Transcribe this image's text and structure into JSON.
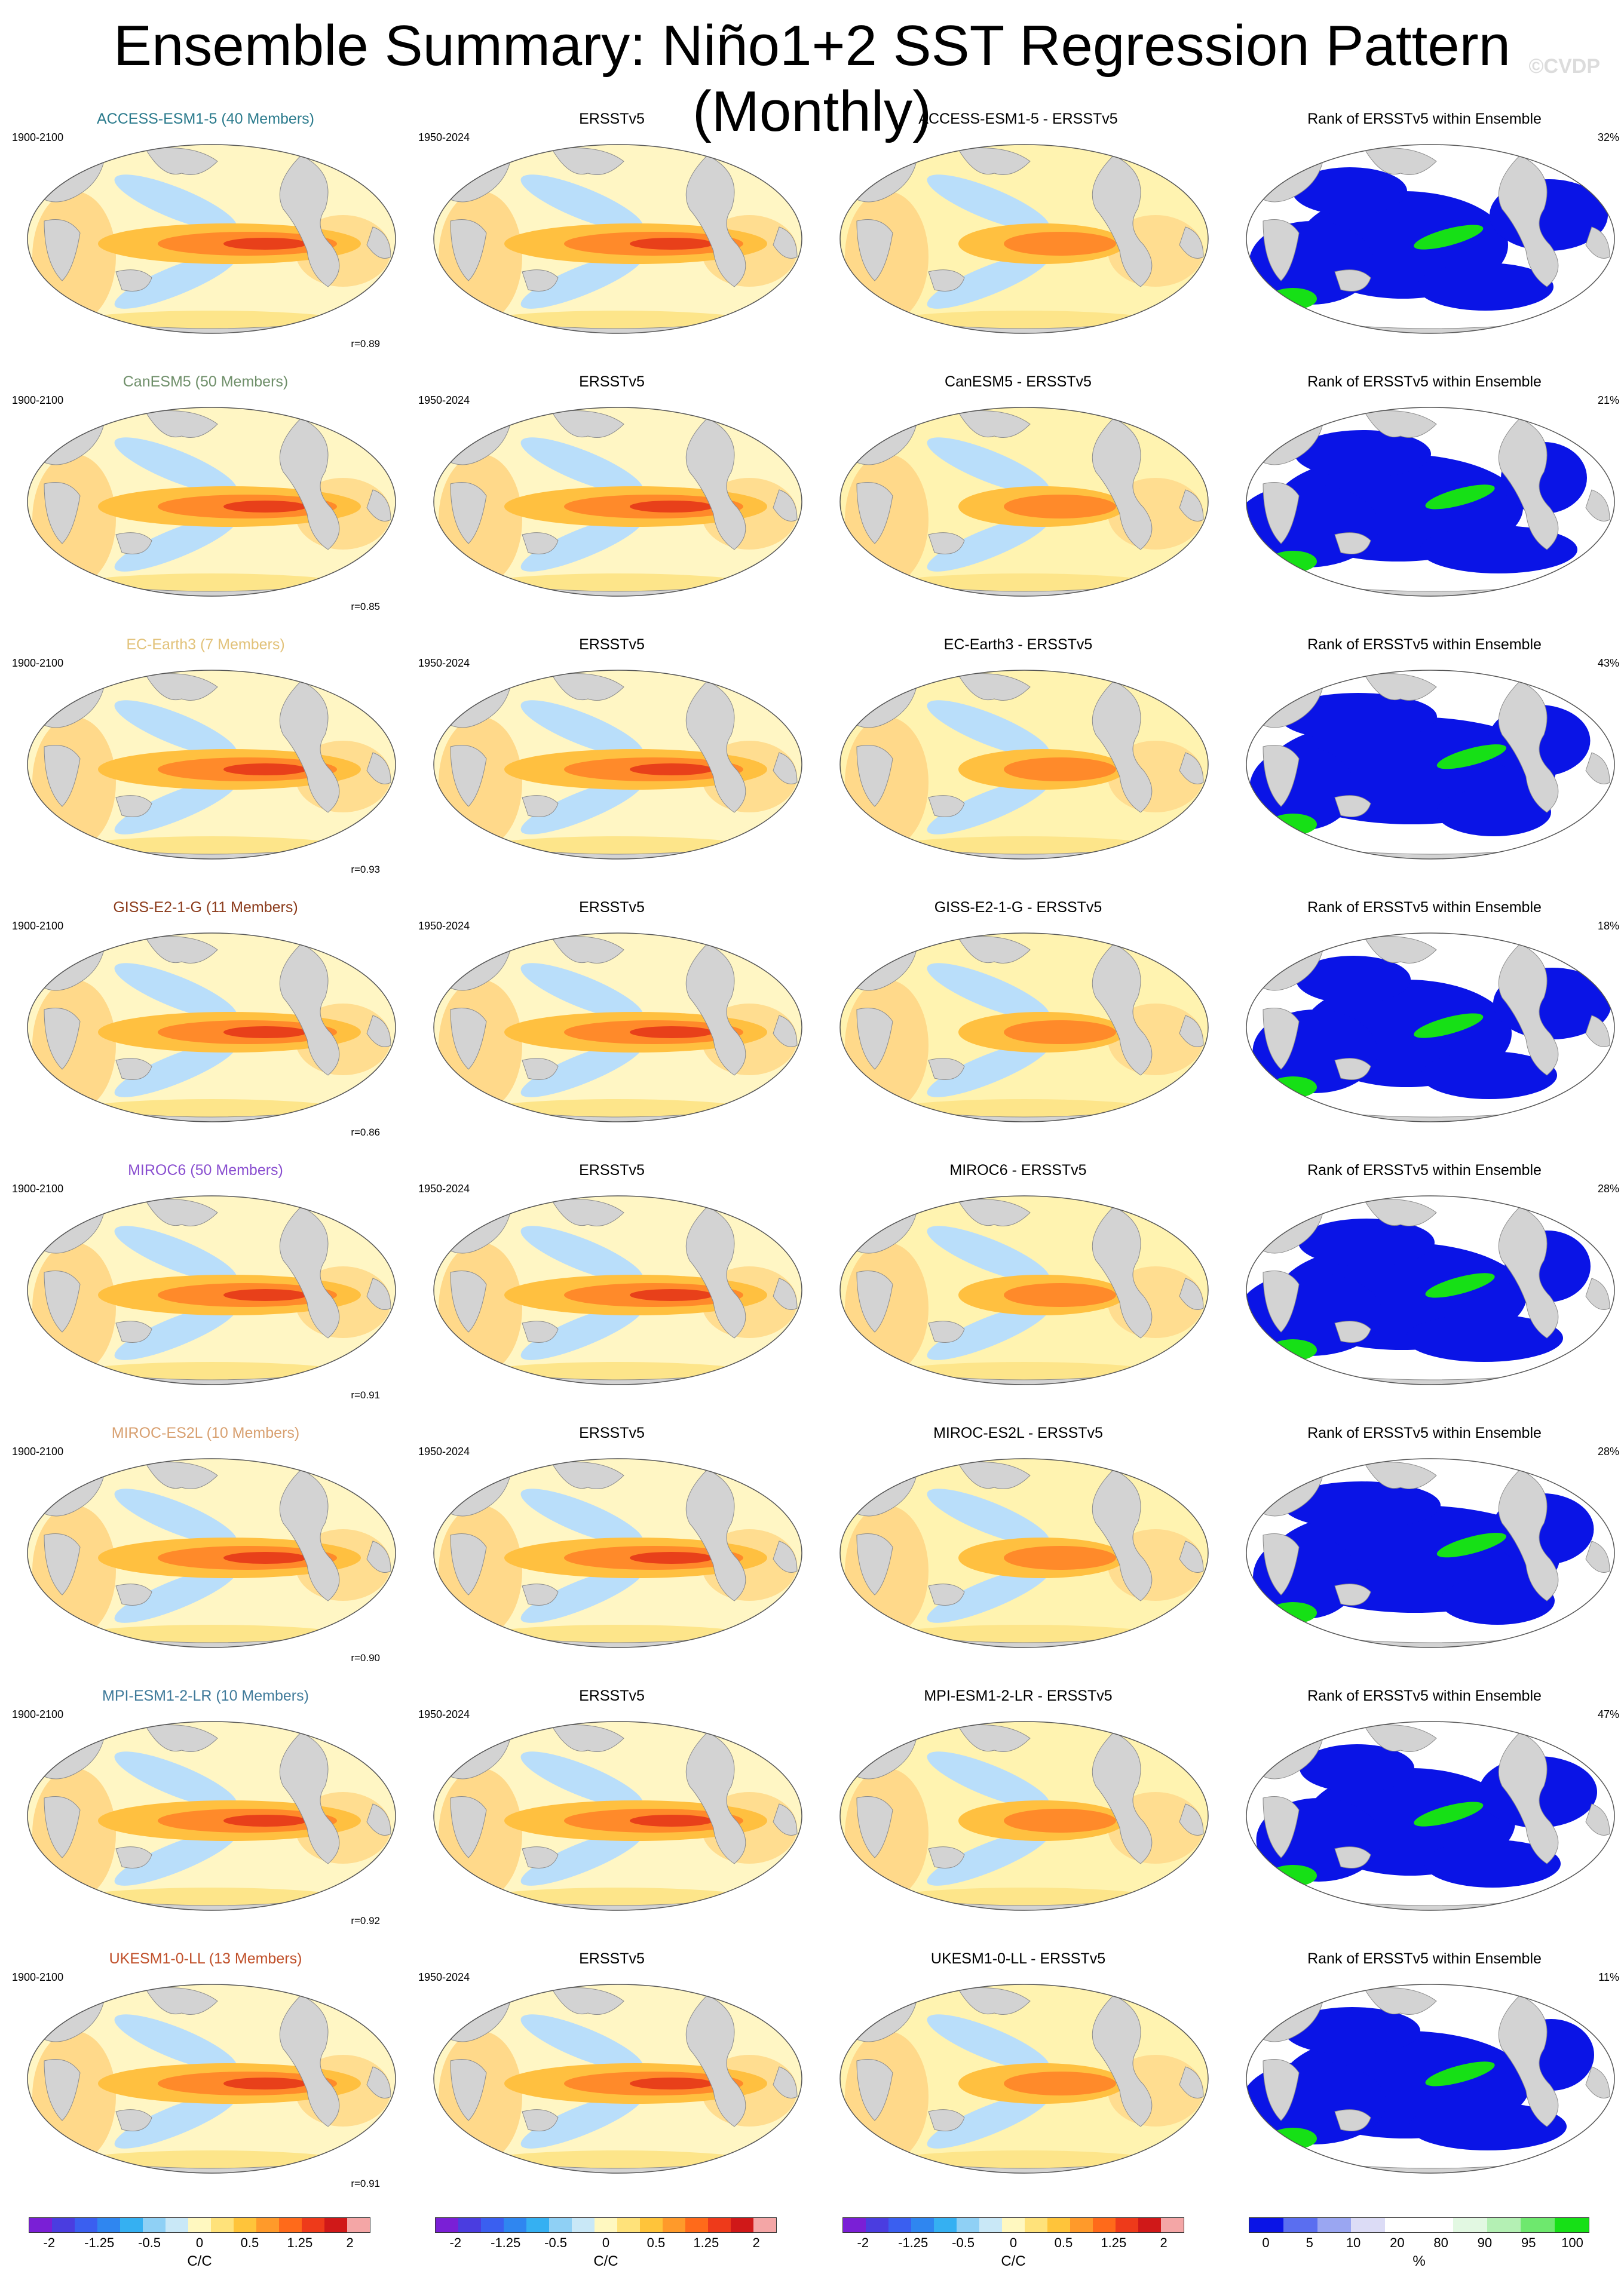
{
  "title": "Ensemble Summary: Niño1+2 SST Regression Pattern (Monthly)",
  "watermark": "©CVDP",
  "rank_title": "Rank of ERSSTv5 within Ensemble",
  "obs_title": "ERSSTv5",
  "model_period": "1900-2100",
  "obs_period": "1950-2024",
  "rows": [
    {
      "model": "ACCESS-ESM1-5 (40 Members)",
      "color": "#2a7a8c",
      "diff": "ACCESS-ESM1-5 - ERSSTv5",
      "rank_pct": "32%",
      "corr": "r=0.89"
    },
    {
      "model": "CanESM5 (50 Members)",
      "color": "#6f8f6a",
      "diff": "CanESM5 - ERSSTv5",
      "rank_pct": "21%",
      "corr": "r=0.85"
    },
    {
      "model": "EC-Earth3 (7 Members)",
      "color": "#e2c27a",
      "diff": "EC-Earth3 - ERSSTv5",
      "rank_pct": "43%",
      "corr": "r=0.93"
    },
    {
      "model": "GISS-E2-1-G (11 Members)",
      "color": "#8b3a1a",
      "diff": "GISS-E2-1-G - ERSSTv5",
      "rank_pct": "18%",
      "corr": "r=0.86"
    },
    {
      "model": "MIROC6 (50 Members)",
      "color": "#8a4fd0",
      "diff": "MIROC6 - ERSSTv5",
      "rank_pct": "28%",
      "corr": "r=0.91"
    },
    {
      "model": "MIROC-ES2L (10 Members)",
      "color": "#d8a070",
      "diff": "MIROC-ES2L - ERSSTv5",
      "rank_pct": "28%",
      "corr": "r=0.90"
    },
    {
      "model": "MPI-ESM1-2-LR (10 Members)",
      "color": "#3f7a9a",
      "diff": "MPI-ESM1-2-LR - ERSSTv5",
      "rank_pct": "47%",
      "corr": "r=0.92"
    },
    {
      "model": "UKESM1-0-LL (13 Members)",
      "color": "#c0502a",
      "diff": "UKESM1-0-LL - ERSSTv5",
      "rank_pct": "11%",
      "corr": "r=0.91"
    }
  ],
  "colorbar_sst": {
    "unit": "C/C",
    "ticks": [
      "-2",
      "-1.25",
      "-0.5",
      "0",
      "0.5",
      "1.25",
      "2"
    ],
    "colors": [
      "#7a1fd6",
      "#4a3de0",
      "#3a5ff0",
      "#2f86f0",
      "#35b0f2",
      "#8fd0f5",
      "#c9e8f7",
      "#fff8c0",
      "#ffe27a",
      "#ffc43a",
      "#ff9a2a",
      "#ff6a1a",
      "#ee3a1a",
      "#d01818",
      "#f4a6a6"
    ]
  },
  "colorbar_rank": {
    "unit": "%",
    "ticks": [
      "0",
      "5",
      "10",
      "20",
      "80",
      "90",
      "95",
      "100"
    ],
    "colors": [
      "#0a14e6",
      "#5a6ef0",
      "#9aa6f2",
      "#dcdcf6",
      "#ffffff",
      "#ffffff",
      "#e2f8e2",
      "#b4f0b4",
      "#6ee86e",
      "#16e016"
    ]
  }
}
